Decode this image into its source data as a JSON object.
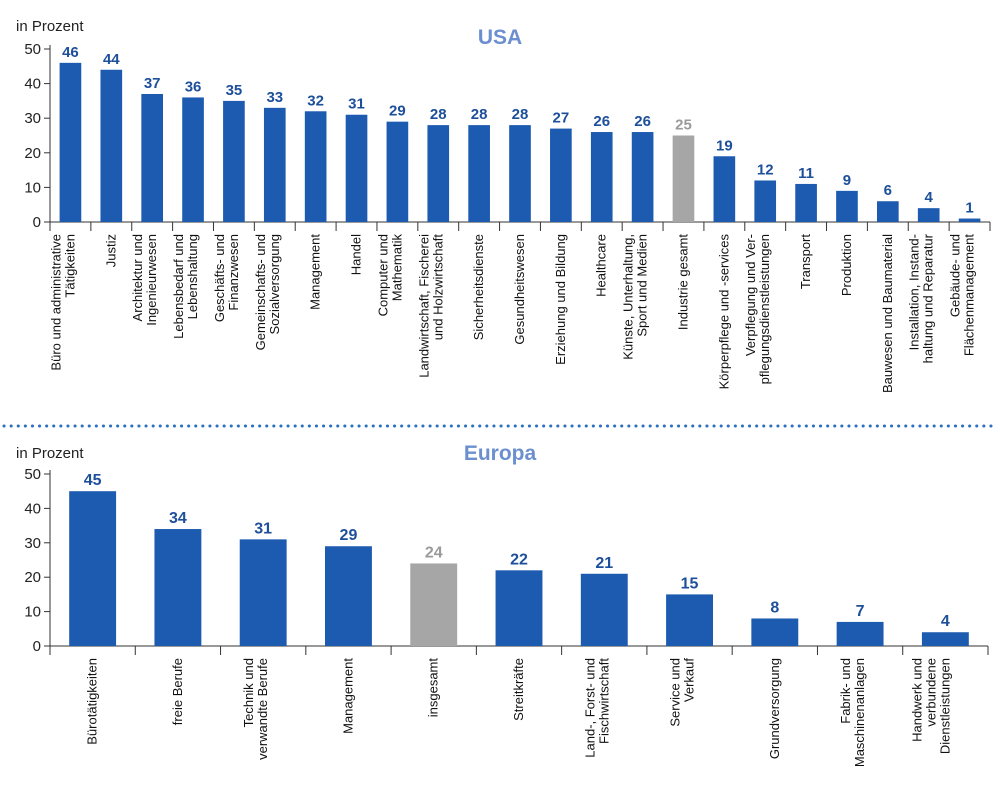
{
  "chart_data": [
    {
      "type": "bar",
      "title": "USA",
      "ylabel": "in Prozent",
      "ylim": [
        0,
        50
      ],
      "yticks": [
        0,
        10,
        20,
        30,
        40,
        50
      ],
      "bar_color": "#1d5bb0",
      "highlight_color": "#a6a6a6",
      "highlight_label_color": "#9a9a9a",
      "label_color": "#1d4f9a",
      "title_color": "#6b8fcf",
      "highlight_category": "Industrie gesamt",
      "categories": [
        "Büro und administrative\nTätigkeiten",
        "Justiz",
        "Architektur und\nIngenieurwesen",
        "Lebensbedarf und\nLebenshaltung",
        "Geschäfts- und\nFinanzwesen",
        "Gemeinschafts- und\nSozialversorgung",
        "Management",
        "Handel",
        "Computer und\nMathematik",
        "Landwirtschaft, Fischerei\nund Holzwirtschaft",
        "Sicherheitsdienste",
        "Gesundheitswesen",
        "Erziehung und Bildung",
        "Healthcare",
        "Künste, Unterhaltung,\nSport und Medien",
        "Industrie gesamt",
        "Körperpflege und -services",
        "Verpflegung und Ver-\npflegungsdienstleistungen",
        "Transport",
        "Produktion",
        "Bauwesen und Baumaterial",
        "Installation, Instand-\nhaltung und Reparatur",
        "Gebäude- und\nFlächenmanagement"
      ],
      "values": [
        46,
        44,
        37,
        36,
        35,
        33,
        32,
        31,
        29,
        28,
        28,
        28,
        27,
        26,
        26,
        25,
        19,
        12,
        11,
        9,
        6,
        4,
        1
      ]
    },
    {
      "type": "bar",
      "title": "Europa",
      "ylabel": "in Prozent",
      "ylim": [
        0,
        50
      ],
      "yticks": [
        0,
        10,
        20,
        30,
        40,
        50
      ],
      "bar_color": "#1d5bb0",
      "highlight_color": "#a6a6a6",
      "highlight_label_color": "#9a9a9a",
      "label_color": "#1d4f9a",
      "title_color": "#6b8fcf",
      "highlight_category": "insgesamt",
      "categories": [
        "Bürotätigkeiten",
        "freie Berufe",
        "Technik und\nverwandte Berufe",
        "Management",
        "insgesamt",
        "Streitkräfte",
        "Land-, Forst- und\nFischwirtschaft",
        "Service und\nVerkauf",
        "Grundversorgung",
        "Fabrik- und\nMaschinenanlagen",
        "Handwerk und\nverbundene\nDienstleistungen"
      ],
      "values": [
        45,
        34,
        31,
        29,
        24,
        22,
        21,
        15,
        8,
        7,
        4
      ]
    }
  ]
}
